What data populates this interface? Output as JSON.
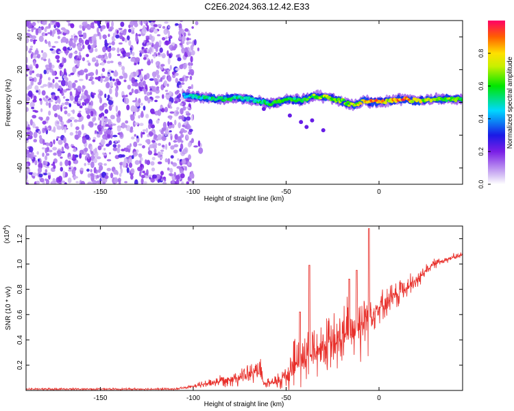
{
  "title": "C2E6.2024.363.12.42.E33",
  "chart_data": [
    {
      "type": "heatmap",
      "name": "spectrogram",
      "xlabel": "Height of straight line (km)",
      "ylabel": "Frequency (Hz)",
      "xlim": [
        -190,
        45
      ],
      "ylim": [
        -50,
        50
      ],
      "xticks": [
        -150,
        -100,
        -50,
        0
      ],
      "xtick_labels": [
        "-150",
        "-100",
        "-50",
        "0"
      ],
      "yticks": [
        -40,
        -20,
        0,
        20,
        40
      ],
      "ytick_labels": [
        "-40",
        "-20",
        "0",
        "20",
        "40"
      ],
      "colorbar": {
        "label": "Normalized spectral amplitude",
        "range": [
          0.0,
          1.0
        ],
        "ticks": [
          0.0,
          0.2,
          0.4,
          0.6,
          0.8
        ],
        "tick_labels": [
          "0.0",
          "0.2",
          "0.4",
          "0.6",
          "0.8"
        ]
      },
      "noise_region_x": [
        -190,
        -100
      ],
      "signal_track": {
        "x": [
          -105,
          -95,
          -85,
          -75,
          -65,
          -58,
          -50,
          -42,
          -35,
          -28,
          -20,
          -14,
          -8,
          -3,
          5,
          12,
          20,
          30,
          45
        ],
        "freq": [
          4,
          3,
          2,
          3,
          1,
          -1,
          2,
          1,
          4,
          3,
          1,
          -2,
          1,
          0,
          1,
          2,
          1,
          2,
          2
        ],
        "amplitude": [
          0.45,
          0.55,
          0.6,
          0.55,
          0.55,
          0.6,
          0.65,
          0.6,
          0.7,
          0.75,
          0.7,
          0.75,
          0.8,
          0.95,
          0.8,
          0.95,
          0.8,
          0.7,
          0.65
        ]
      }
    },
    {
      "type": "line",
      "name": "snr",
      "xlabel": "Height of straight line (km)",
      "ylabel": "SNR (10 * v/v)",
      "scale_label": "(x10",
      "scale_exponent": "4",
      "scale_suffix": ")",
      "xlim": [
        -190,
        45
      ],
      "ylim": [
        0,
        1.3
      ],
      "xticks": [
        -150,
        -100,
        -50,
        0
      ],
      "xtick_labels": [
        "-150",
        "-100",
        "-50",
        "0"
      ],
      "yticks": [
        0.2,
        0.4,
        0.6,
        0.8,
        1.0,
        1.2
      ],
      "ytick_labels": [
        "0.2",
        "0.4",
        "0.6",
        "0.8",
        "1.0",
        "1.2"
      ],
      "color": "#e8302b",
      "envelope": {
        "x": [
          -190,
          -110,
          -100,
          -90,
          -80,
          -70,
          -64,
          -62,
          -55,
          -50,
          -45,
          -40,
          -35,
          -30,
          -25,
          -20,
          -15,
          -10,
          -6,
          -5,
          0,
          5,
          10,
          15,
          20,
          25,
          30,
          35,
          45
        ],
        "base": [
          0.01,
          0.01,
          0.03,
          0.06,
          0.09,
          0.12,
          0.15,
          0.05,
          0.06,
          0.12,
          0.2,
          0.25,
          0.3,
          0.33,
          0.35,
          0.4,
          0.45,
          0.5,
          0.6,
          0.6,
          0.65,
          0.7,
          0.75,
          0.8,
          0.85,
          0.95,
          1.0,
          1.03,
          1.07
        ],
        "amp": [
          0.01,
          0.01,
          0.02,
          0.05,
          0.08,
          0.1,
          0.12,
          0.03,
          0.08,
          0.2,
          0.3,
          0.35,
          0.3,
          0.28,
          0.3,
          0.35,
          0.35,
          0.35,
          0.4,
          0.3,
          0.15,
          0.15,
          0.15,
          0.12,
          0.1,
          0.06,
          0.05,
          0.04,
          0.03
        ]
      },
      "spikes": [
        {
          "x": -37.5,
          "y": 0.99
        },
        {
          "x": -42.5,
          "y": 0.62
        },
        {
          "x": -16,
          "y": 0.88
        },
        {
          "x": -12,
          "y": 0.95
        },
        {
          "x": -5.5,
          "y": 1.28
        },
        {
          "x": 12,
          "y": 0.85
        }
      ]
    }
  ]
}
